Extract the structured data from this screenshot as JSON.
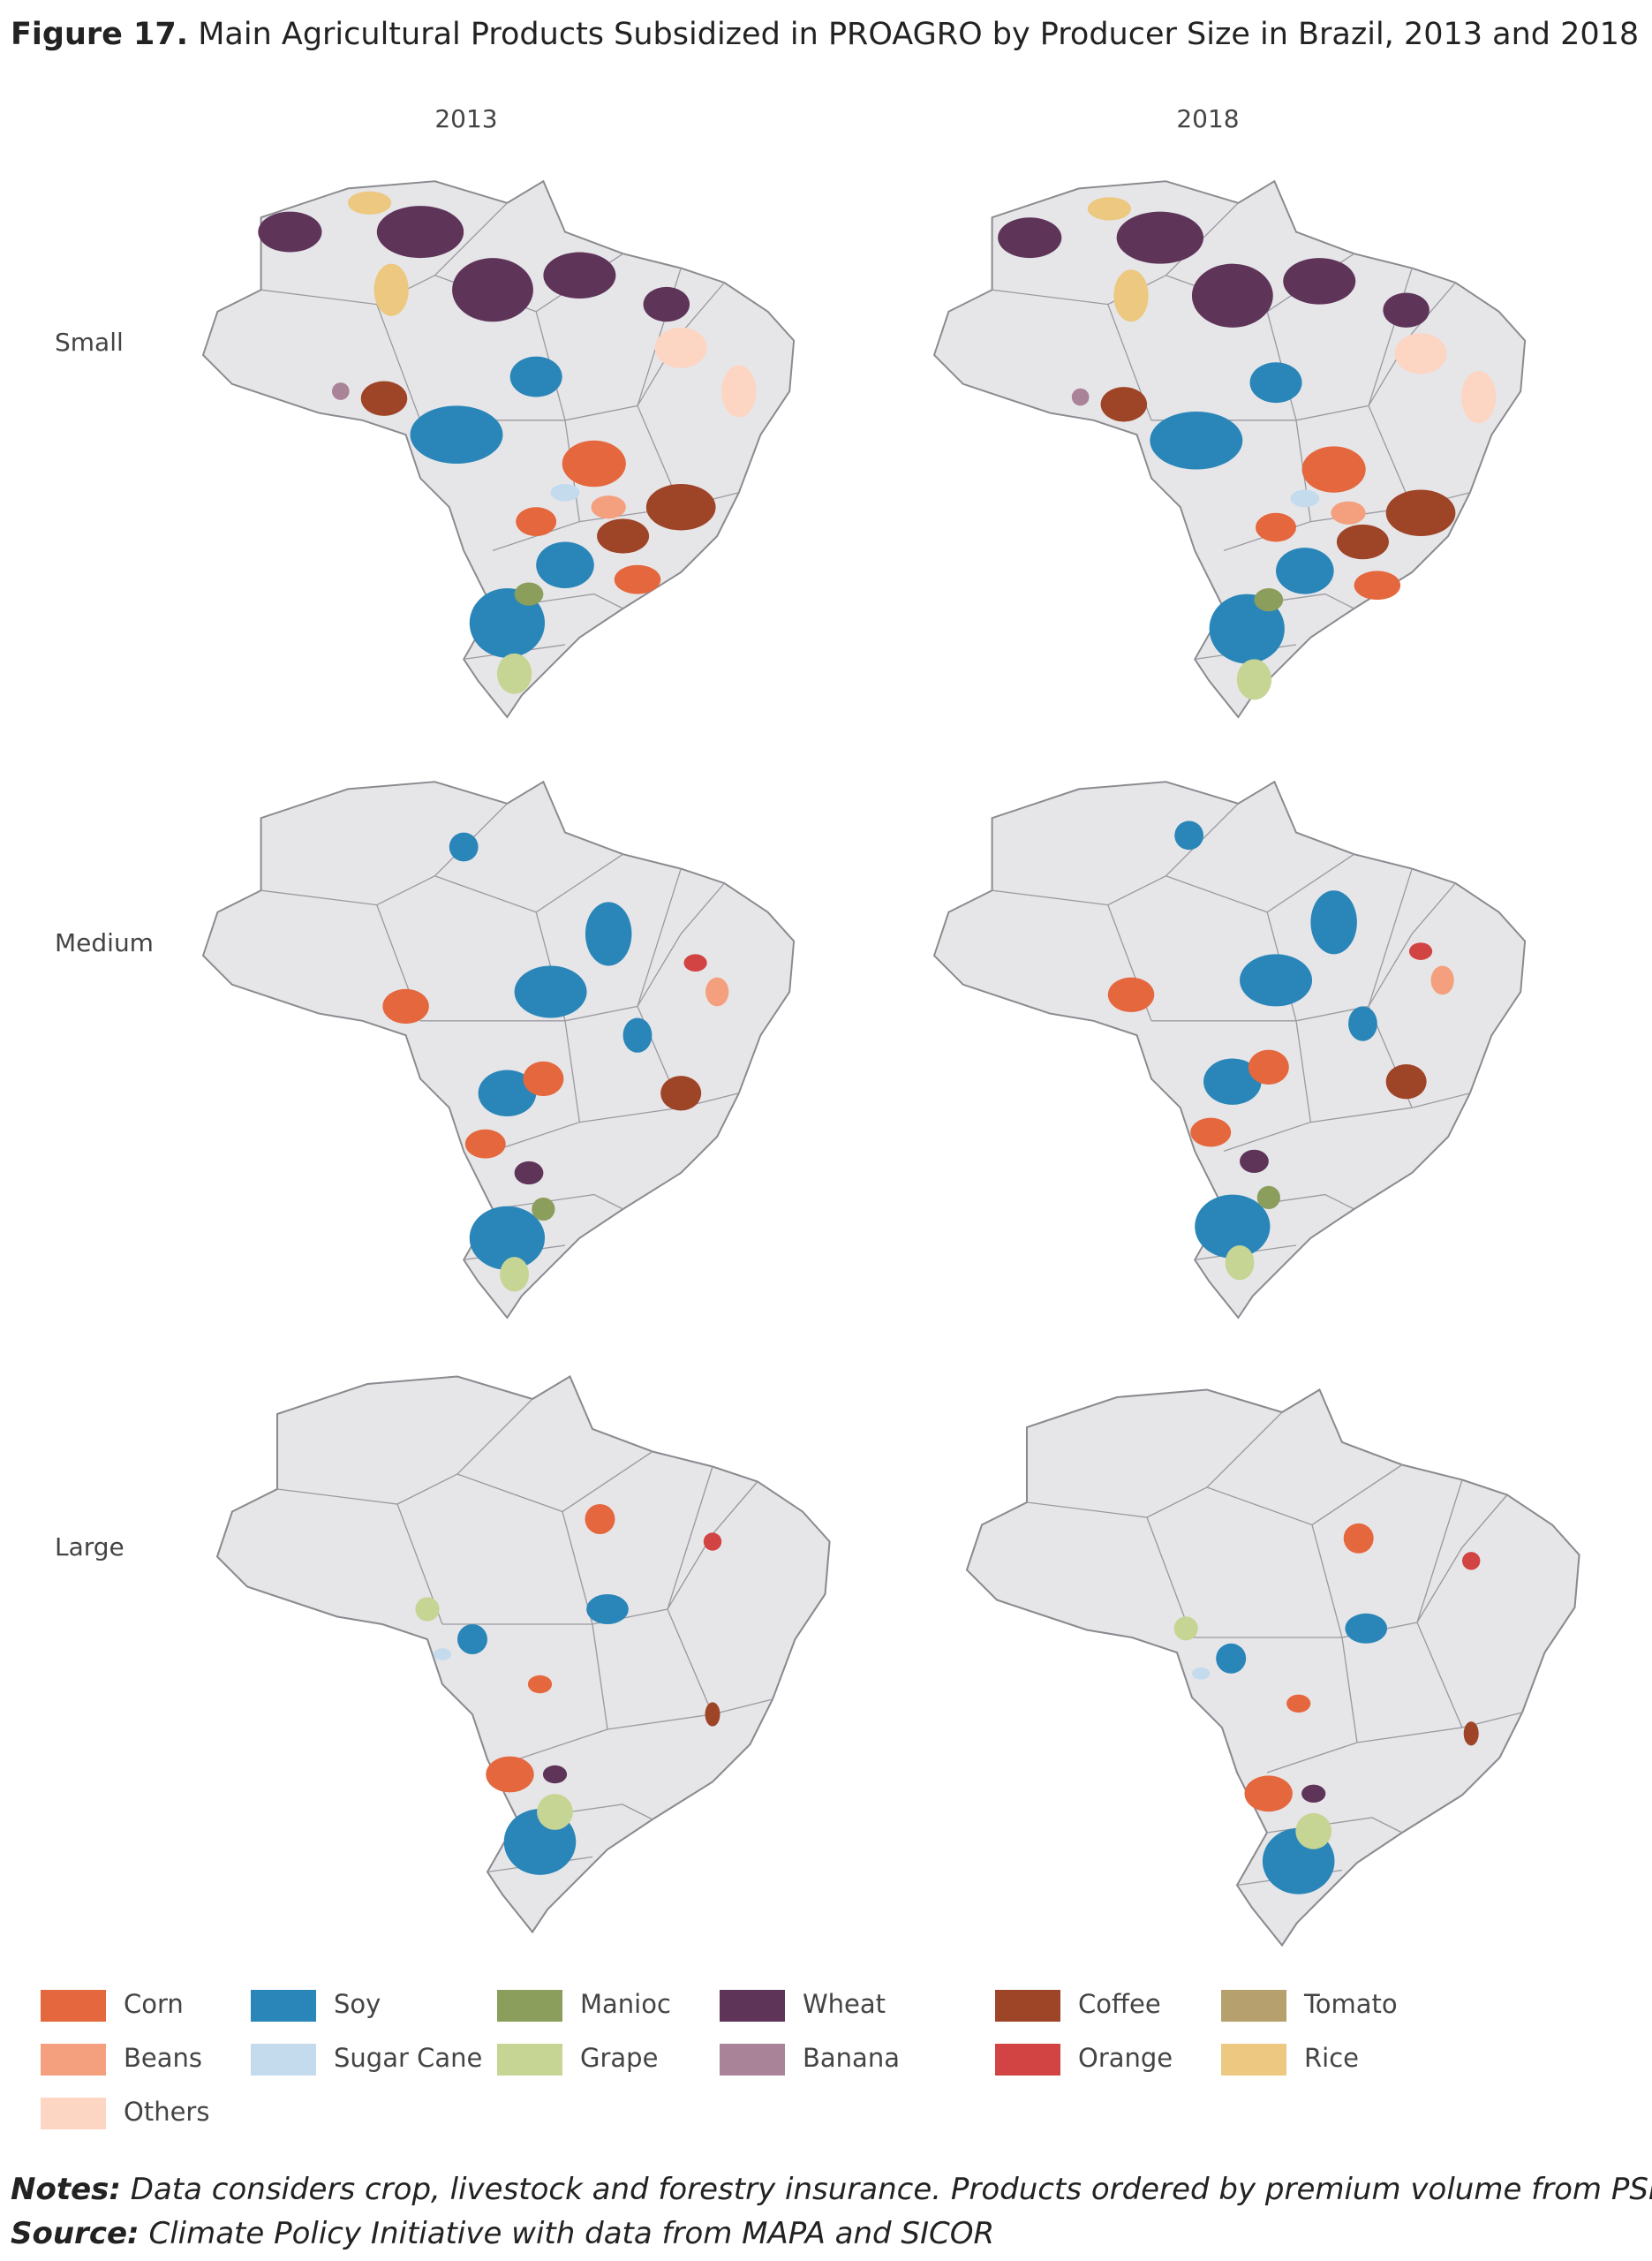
{
  "header": {
    "figure": "Figure 17.",
    "title": "Main Agricultural Products Subsidized in PROAGRO by Producer Size in Brazil, 2013 and 2018"
  },
  "columns": [
    "2013",
    "2018"
  ],
  "rows": [
    "Small",
    "Medium",
    "Large"
  ],
  "legend": [
    {
      "label": "Corn",
      "color": "#e5673d"
    },
    {
      "label": "Soy",
      "color": "#2a86b8"
    },
    {
      "label": "Manioc",
      "color": "#8b9e5c"
    },
    {
      "label": "Wheat",
      "color": "#5e3459"
    },
    {
      "label": "Coffee",
      "color": "#9e4427"
    },
    {
      "label": "Tomato",
      "color": "#b6a06e"
    },
    {
      "label": "Beans",
      "color": "#f4a07e"
    },
    {
      "label": "Sugar Cane",
      "color": "#c4dbed"
    },
    {
      "label": "Grape",
      "color": "#c6d494"
    },
    {
      "label": "Banana",
      "color": "#a98499"
    },
    {
      "label": "Orange",
      "color": "#d24343"
    },
    {
      "label": "Rice",
      "color": "#ecc880"
    },
    {
      "label": "Others",
      "color": "#fcd5c3"
    }
  ],
  "notes": {
    "label": "Notes:",
    "text": "Data considers crop, livestock and forestry insurance. Products ordered by premium volume from PSR."
  },
  "source": {
    "label": "Source:",
    "text": "Climate Policy Initiative with data from MAPA and SICOR"
  }
}
